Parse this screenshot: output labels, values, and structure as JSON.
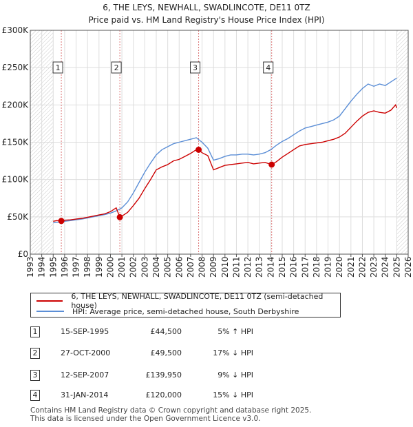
{
  "chart_data": {
    "type": "line",
    "title": "6, THE LEYS, NEWHALL, SWADLINCOTE, DE11 0TZ",
    "subtitle": "Price paid vs. HM Land Registry's House Price Index (HPI)",
    "xlabel": "",
    "ylabel": "",
    "xlim": [
      1993,
      2026
    ],
    "ylim": [
      0,
      300000
    ],
    "x_ticks": [
      "1993",
      "1994",
      "1995",
      "1996",
      "1997",
      "1998",
      "1999",
      "2000",
      "2001",
      "2002",
      "2003",
      "2004",
      "2005",
      "2006",
      "2007",
      "2008",
      "2009",
      "2010",
      "2011",
      "2012",
      "2013",
      "2014",
      "2015",
      "2016",
      "2017",
      "2018",
      "2019",
      "2020",
      "2021",
      "2022",
      "2023",
      "2024",
      "2025",
      "2026"
    ],
    "y_ticks": [
      {
        "value": 0,
        "label": "£0"
      },
      {
        "value": 50000,
        "label": "£50K"
      },
      {
        "value": 100000,
        "label": "£100K"
      },
      {
        "value": 150000,
        "label": "£150K"
      },
      {
        "value": 200000,
        "label": "£200K"
      },
      {
        "value": 250000,
        "label": "£250K"
      },
      {
        "value": 300000,
        "label": "£300K"
      }
    ],
    "grid": true,
    "hatched_regions": [
      [
        1993,
        1995.0
      ],
      [
        2025.0,
        2026
      ]
    ],
    "series": [
      {
        "name": "6, THE LEYS, NEWHALL, SWADLINCOTE, DE11 0TZ (semi-detached house)",
        "color": "#cc0000",
        "x": [
          1995.0,
          1995.3,
          1995.71,
          1996.0,
          1996.5,
          1997.0,
          1997.5,
          1998.0,
          1998.5,
          1999.0,
          1999.5,
          2000.0,
          2000.5,
          2000.82,
          2001.0,
          2001.5,
          2002.0,
          2002.5,
          2003.0,
          2003.5,
          2004.0,
          2004.5,
          2005.0,
          2005.5,
          2006.0,
          2006.5,
          2007.0,
          2007.5,
          2007.7,
          2008.0,
          2008.5,
          2009.0,
          2009.5,
          2010.0,
          2010.5,
          2011.0,
          2011.5,
          2012.0,
          2012.5,
          2013.0,
          2013.5,
          2014.08,
          2014.5,
          2015.0,
          2015.5,
          2016.0,
          2016.5,
          2017.0,
          2017.5,
          2018.0,
          2018.5,
          2019.0,
          2019.5,
          2020.0,
          2020.5,
          2021.0,
          2021.5,
          2022.0,
          2022.5,
          2023.0,
          2023.5,
          2024.0,
          2024.5,
          2024.9,
          2025.0
        ],
        "values": [
          44000,
          45000,
          44500,
          45500,
          46000,
          47000,
          48000,
          49500,
          51000,
          52500,
          54000,
          57000,
          62000,
          49500,
          51000,
          56000,
          65000,
          75000,
          88000,
          100000,
          113000,
          117000,
          120000,
          125000,
          127000,
          131000,
          135000,
          140000,
          139950,
          136000,
          132000,
          113000,
          116000,
          119000,
          120000,
          121000,
          122000,
          123000,
          121000,
          122000,
          123000,
          120000,
          124000,
          130000,
          135000,
          140000,
          145000,
          147000,
          148000,
          149000,
          150000,
          152000,
          154000,
          157000,
          162000,
          170000,
          178000,
          185000,
          190000,
          192000,
          190000,
          189000,
          193000,
          200000,
          196000
        ]
      },
      {
        "name": "HPI: Average price, semi-detached house, South Derbyshire",
        "color": "#5b8ed6",
        "x": [
          1995.0,
          1995.5,
          1996.0,
          1996.5,
          1997.0,
          1997.5,
          1998.0,
          1998.5,
          1999.0,
          1999.5,
          2000.0,
          2000.5,
          2001.0,
          2001.5,
          2002.0,
          2002.5,
          2003.0,
          2003.5,
          2004.0,
          2004.5,
          2005.0,
          2005.5,
          2006.0,
          2006.5,
          2007.0,
          2007.5,
          2008.0,
          2008.5,
          2009.0,
          2009.5,
          2010.0,
          2010.5,
          2011.0,
          2011.5,
          2012.0,
          2012.5,
          2013.0,
          2013.5,
          2014.0,
          2014.5,
          2015.0,
          2015.5,
          2016.0,
          2016.5,
          2017.0,
          2017.5,
          2018.0,
          2018.5,
          2019.0,
          2019.5,
          2020.0,
          2020.5,
          2021.0,
          2021.5,
          2022.0,
          2022.5,
          2023.0,
          2023.5,
          2024.0,
          2024.5,
          2025.0
        ],
        "values": [
          42000,
          43000,
          44000,
          45000,
          46000,
          47000,
          48500,
          50000,
          51500,
          53000,
          55000,
          58000,
          62000,
          70000,
          82000,
          96000,
          110000,
          122000,
          133000,
          140000,
          144000,
          148000,
          150000,
          152000,
          154000,
          156000,
          150000,
          142000,
          126000,
          128000,
          131000,
          133000,
          133000,
          134000,
          134000,
          133000,
          134000,
          136000,
          140000,
          146000,
          151000,
          155000,
          160000,
          165000,
          169000,
          171000,
          173000,
          175000,
          177000,
          180000,
          185000,
          195000,
          205000,
          214000,
          222000,
          228000,
          225000,
          228000,
          226000,
          231000,
          236000
        ]
      }
    ],
    "sales": [
      {
        "num": "1",
        "x": 1995.71,
        "value": 44500
      },
      {
        "num": "2",
        "x": 2000.82,
        "value": 49500
      },
      {
        "num": "3",
        "x": 2007.7,
        "value": 139950
      },
      {
        "num": "4",
        "x": 2014.08,
        "value": 120000
      }
    ]
  },
  "legend": {
    "property_label": "6, THE LEYS, NEWHALL, SWADLINCOTE, DE11 0TZ (semi-detached house)",
    "hpi_label": "HPI: Average price, semi-detached house, South Derbyshire",
    "property_color": "#cc0000",
    "hpi_color": "#5b8ed6"
  },
  "transactions": [
    {
      "num": "1",
      "date": "15-SEP-1995",
      "price": "£44,500",
      "hpi": "5% ↑ HPI"
    },
    {
      "num": "2",
      "date": "27-OCT-2000",
      "price": "£49,500",
      "hpi": "17% ↓ HPI"
    },
    {
      "num": "3",
      "date": "12-SEP-2007",
      "price": "£139,950",
      "hpi": "9% ↓ HPI"
    },
    {
      "num": "4",
      "date": "31-JAN-2014",
      "price": "£120,000",
      "hpi": "15% ↓ HPI"
    }
  ],
  "footer": {
    "line1": "Contains HM Land Registry data © Crown copyright and database right 2025.",
    "line2": "This data is licensed under the Open Government Licence v3.0."
  }
}
